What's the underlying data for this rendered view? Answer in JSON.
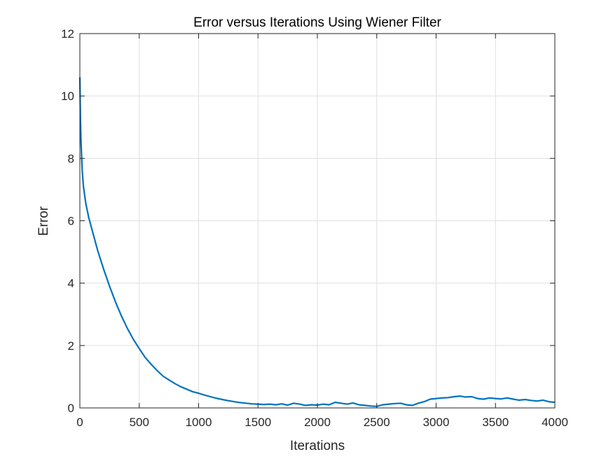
{
  "chart_data": {
    "type": "line",
    "title": "Error versus Iterations Using Wiener Filter",
    "xlabel": "Iterations",
    "ylabel": "Error",
    "xlim": [
      0,
      4000
    ],
    "ylim": [
      0,
      12
    ],
    "xticks": [
      0,
      500,
      1000,
      1500,
      2000,
      2500,
      3000,
      3500,
      4000
    ],
    "yticks": [
      0,
      2,
      4,
      6,
      8,
      10,
      12
    ],
    "grid": true,
    "legend": "none",
    "series": [
      {
        "color": "#0072bd",
        "x": [
          0,
          5,
          10,
          20,
          30,
          50,
          75,
          100,
          150,
          200,
          250,
          300,
          350,
          400,
          450,
          500,
          550,
          600,
          650,
          700,
          750,
          800,
          850,
          900,
          950,
          1000,
          1050,
          1100,
          1150,
          1200,
          1250,
          1300,
          1350,
          1400,
          1450,
          1500,
          1550,
          1600,
          1650,
          1700,
          1750,
          1800,
          1850,
          1900,
          1950,
          2000,
          2050,
          2100,
          2150,
          2200,
          2250,
          2300,
          2350,
          2400,
          2450,
          2500,
          2550,
          2600,
          2650,
          2700,
          2750,
          2800,
          2850,
          2900,
          2950,
          3000,
          3050,
          3100,
          3150,
          3200,
          3250,
          3300,
          3350,
          3400,
          3450,
          3500,
          3550,
          3600,
          3650,
          3700,
          3750,
          3800,
          3850,
          3900,
          3950,
          4000
        ],
        "y": [
          10.6,
          9.3,
          8.5,
          7.6,
          7.1,
          6.55,
          6.1,
          5.75,
          5.05,
          4.45,
          3.9,
          3.4,
          2.95,
          2.55,
          2.2,
          1.9,
          1.62,
          1.4,
          1.2,
          1.02,
          0.9,
          0.78,
          0.68,
          0.6,
          0.52,
          0.47,
          0.41,
          0.36,
          0.31,
          0.27,
          0.23,
          0.2,
          0.17,
          0.15,
          0.13,
          0.12,
          0.11,
          0.12,
          0.1,
          0.13,
          0.09,
          0.15,
          0.12,
          0.08,
          0.1,
          0.09,
          0.12,
          0.1,
          0.18,
          0.15,
          0.12,
          0.16,
          0.1,
          0.08,
          0.06,
          0.05,
          0.1,
          0.12,
          0.14,
          0.15,
          0.1,
          0.08,
          0.15,
          0.2,
          0.28,
          0.3,
          0.32,
          0.33,
          0.36,
          0.38,
          0.35,
          0.36,
          0.3,
          0.28,
          0.32,
          0.3,
          0.29,
          0.32,
          0.28,
          0.25,
          0.27,
          0.24,
          0.22,
          0.25,
          0.2,
          0.18
        ]
      }
    ]
  }
}
